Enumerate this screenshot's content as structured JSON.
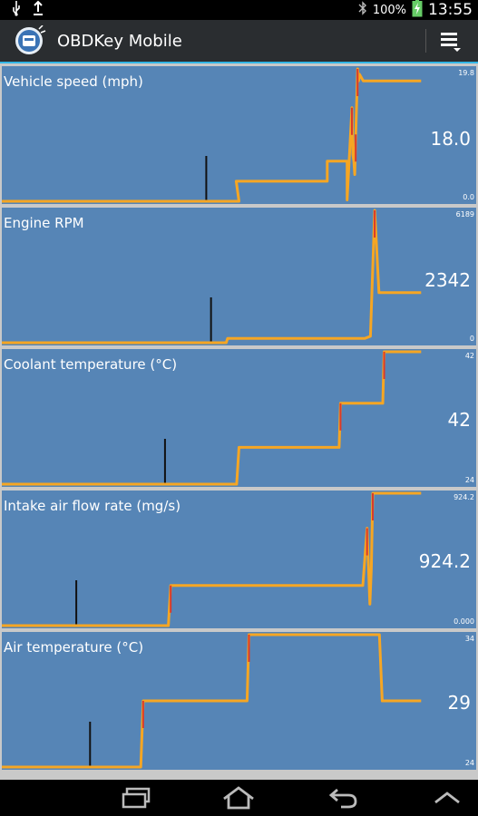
{
  "status_bar": {
    "icons": [
      "usb-icon",
      "upload-icon",
      "bluetooth-icon",
      "battery-charging-icon"
    ],
    "battery": "100%",
    "time": "13:55"
  },
  "action_bar": {
    "title": "OBDKey Mobile",
    "logo_icon": "obdkey-logo-icon",
    "menu_icon": "overflow-menu-icon"
  },
  "colors": {
    "panel": "#5685b6",
    "line": "#f6a623",
    "spike": "#d93a2b",
    "marker": "#111111"
  },
  "panels": [
    {
      "label": "Vehicle speed (mph)",
      "value": "18.0",
      "max": "19.8",
      "min": "0.0"
    },
    {
      "label": "Engine RPM",
      "value": "2342",
      "max": "6189",
      "min": "0"
    },
    {
      "label": "Coolant temperature (°C)",
      "value": "42",
      "max": "42",
      "min": "24"
    },
    {
      "label": "Intake air flow rate (mg/s)",
      "value": "924.2",
      "max": "924.2",
      "min": "0.000"
    },
    {
      "label": "Air temperature (°C)",
      "value": "29",
      "max": "34",
      "min": "24"
    }
  ],
  "chart_data": [
    {
      "type": "line",
      "title": "Vehicle speed (mph)",
      "current": 18.0,
      "ylim": [
        0.0,
        19.8
      ],
      "x": [
        0,
        50,
        49.4,
        68.6,
        68.6,
        72.8,
        72.8,
        73.8,
        74,
        74.2,
        74.4,
        74.6,
        75,
        75.2,
        75.4,
        76.2,
        88.4
      ],
      "y": [
        0.0,
        0.0,
        3.0,
        3.0,
        6.0,
        6.0,
        0.2,
        14.0,
        7.0,
        6.0,
        4.0,
        10.0,
        19.8,
        18.0,
        19.0,
        18.0,
        18.0
      ],
      "marker_x": 43.1
    },
    {
      "type": "line",
      "title": "Engine RPM",
      "current": 2342,
      "ylim": [
        0,
        6189
      ],
      "x": [
        0,
        47.3,
        47.6,
        76.5,
        77.7,
        78.6,
        79.5,
        88.4
      ],
      "y": [
        0,
        0,
        200,
        200,
        300,
        6189,
        2342,
        2342
      ],
      "marker_x": 44.1
    },
    {
      "type": "line",
      "title": "Coolant temperature (°C)",
      "current": 42,
      "ylim": [
        24,
        42
      ],
      "x": [
        0,
        49.5,
        50.0,
        71.1,
        71.4,
        80.3,
        80.6,
        88.4
      ],
      "y": [
        24,
        24,
        29,
        29,
        35,
        35,
        42,
        42
      ],
      "marker_x": 34.4
    },
    {
      "type": "line",
      "title": "Intake air flow rate (mg/s)",
      "current": 924.2,
      "ylim": [
        0,
        924.2
      ],
      "x": [
        0,
        35.1,
        35.6,
        76.1,
        77.0,
        77.6,
        77.9,
        78.2,
        78.5,
        88.4
      ],
      "y": [
        0,
        0,
        280,
        280,
        680,
        150,
        400,
        924.2,
        924.2,
        924.2
      ],
      "marker_x": 15.7
    },
    {
      "type": "line",
      "title": "Air temperature (°C)",
      "current": 29,
      "ylim": [
        24,
        34
      ],
      "x": [
        0,
        29.3,
        29.8,
        51.7,
        52.1,
        79.6,
        80.2,
        88.4
      ],
      "y": [
        24,
        24,
        29,
        29,
        34,
        34,
        29,
        29
      ],
      "marker_x": 18.6
    }
  ],
  "nav_bar": {
    "icons": [
      "recent-apps-icon",
      "home-icon",
      "back-icon",
      "expand-up-icon"
    ]
  }
}
